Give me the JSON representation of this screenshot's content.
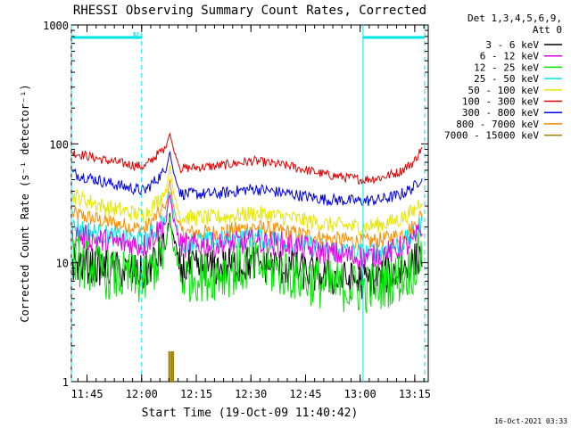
{
  "chart_data": {
    "type": "line",
    "title": "RHESSI Observing Summary Count Rates, Corrected",
    "xlabel": "Start Time (19-Oct-09 11:40:42)",
    "ylabel": "Corrected Count Rate (s⁻¹ detector⁻¹)",
    "yscale": "log",
    "ylim": [
      1,
      1000
    ],
    "y_ticks": [
      "1",
      "10",
      "100",
      "1000"
    ],
    "x_ticks": [
      "11:45",
      "12:00",
      "12:15",
      "12:30",
      "12:45",
      "13:00",
      "13:15"
    ],
    "x_range_minutes": [
      0,
      98
    ],
    "legend_title": [
      "Det 1,3,4,5,6,9,",
      "Att 0"
    ],
    "legend_position": "right",
    "timestamp": "16-Oct-2021 03:33",
    "night_marker_label": "N",
    "series": [
      {
        "name": "3 - 6 keV",
        "color": "#000000",
        "x": [
          0,
          10,
          20,
          26,
          27,
          28,
          30,
          40,
          50,
          60,
          70,
          80,
          85,
          90,
          94,
          96
        ],
        "y": [
          10,
          9,
          8,
          14,
          25,
          16,
          9,
          9,
          10,
          9,
          7.5,
          7,
          7.5,
          8.5,
          10,
          12
        ]
      },
      {
        "name": "6 - 12 keV",
        "color": "#e600e6",
        "x": [
          0,
          10,
          20,
          26,
          27,
          28,
          30,
          40,
          50,
          60,
          70,
          80,
          85,
          90,
          94,
          96
        ],
        "y": [
          17,
          15,
          14,
          22,
          38,
          24,
          14,
          14,
          15,
          14,
          12,
          11,
          11.5,
          13,
          15,
          19
        ]
      },
      {
        "name": "12 - 25 keV",
        "color": "#00e600",
        "x": [
          0,
          10,
          20,
          26,
          27,
          28,
          30,
          40,
          50,
          60,
          70,
          80,
          85,
          90,
          94,
          96
        ],
        "y": [
          11,
          8,
          7,
          13,
          24,
          14,
          7.5,
          8,
          9.5,
          8,
          6.5,
          6,
          6.5,
          7.5,
          9,
          12
        ]
      },
      {
        "name": "25 - 50 keV",
        "color": "#00e6e6",
        "x": [
          0,
          10,
          20,
          26,
          27,
          28,
          30,
          40,
          50,
          60,
          70,
          80,
          85,
          90,
          94,
          96
        ],
        "y": [
          20,
          17,
          15,
          24,
          42,
          26,
          15,
          15,
          16.5,
          15,
          13,
          12,
          12.5,
          14,
          17,
          21
        ]
      },
      {
        "name": "50 - 100 keV",
        "color": "#e6e600",
        "x": [
          0,
          10,
          20,
          26,
          27,
          28,
          30,
          40,
          50,
          60,
          70,
          80,
          85,
          90,
          94,
          96
        ],
        "y": [
          37,
          29,
          25,
          40,
          65,
          40,
          24,
          24,
          26,
          24,
          21,
          20,
          21,
          23,
          27,
          34
        ]
      },
      {
        "name": "100 - 300 keV",
        "color": "#e60000",
        "x": [
          0,
          10,
          20,
          26,
          27,
          28,
          30,
          40,
          50,
          60,
          70,
          80,
          85,
          90,
          94,
          96
        ],
        "y": [
          85,
          72,
          64,
          95,
          125,
          90,
          62,
          65,
          72,
          65,
          55,
          50,
          52,
          58,
          70,
          90
        ]
      },
      {
        "name": "300 - 800 keV",
        "color": "#0000e6",
        "x": [
          0,
          10,
          20,
          26,
          27,
          28,
          30,
          40,
          50,
          60,
          70,
          80,
          85,
          90,
          94,
          96
        ],
        "y": [
          57,
          47,
          40,
          60,
          88,
          58,
          38,
          38,
          42,
          38,
          34,
          33,
          34,
          37,
          43,
          52
        ]
      },
      {
        "name": "800 - 7000 keV",
        "color": "#ff8c00",
        "x": [
          0,
          10,
          20,
          26,
          27,
          28,
          30,
          40,
          50,
          60,
          70,
          80,
          85,
          90,
          94,
          96
        ],
        "y": [
          26,
          22,
          19,
          30,
          50,
          30,
          18,
          18,
          20,
          18,
          16,
          15,
          15.5,
          17,
          20,
          25
        ]
      },
      {
        "name": "7000 - 15000 keV",
        "color": "#a08000",
        "x": [
          26.8,
          27.2,
          27.6,
          28.0
        ],
        "y": [
          1.8,
          1.8,
          1.8,
          1.8
        ]
      }
    ],
    "cyan_markers": [
      {
        "style": "dashed",
        "x_minutes": 0
      },
      {
        "style": "dashed",
        "x_minutes": 19.3
      },
      {
        "style": "solid",
        "x_minutes": 80.1
      },
      {
        "style": "dashed",
        "x_minutes": 97.0
      }
    ],
    "cyan_top_bars": [
      [
        0,
        19.3
      ],
      [
        80.1,
        97.0
      ]
    ]
  }
}
